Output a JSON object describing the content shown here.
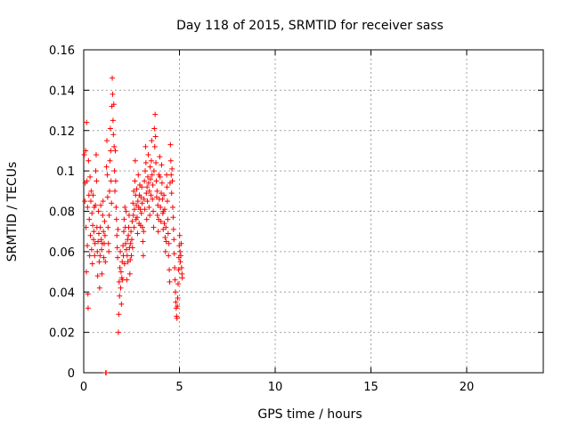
{
  "chart_data": {
    "type": "scatter",
    "title": "Day 118 of 2015, SRMTID for receiver sass",
    "xlabel": "GPS time / hours",
    "ylabel": "SRMTID / TECUs",
    "xlim": [
      0,
      24
    ],
    "ylim": [
      0,
      0.16
    ],
    "xticks": [
      0,
      5,
      10,
      15,
      20
    ],
    "xtick_labels": [
      "0",
      "5",
      "10",
      "15",
      "20"
    ],
    "yticks": [
      0,
      0.02,
      0.04,
      0.06,
      0.08,
      0.1,
      0.12,
      0.14,
      0.16
    ],
    "ytick_labels": [
      "0",
      "0.02",
      "0.04",
      "0.06",
      "0.08",
      "0.1",
      "0.12",
      "0.14",
      "0.16"
    ],
    "grid": true,
    "marker": "plus",
    "color": "#ff0000",
    "series": [
      {
        "name": "SRMTID",
        "points": [
          [
            0.03,
            0.108
          ],
          [
            0.06,
            0.085
          ],
          [
            0.08,
            0.094
          ],
          [
            0.1,
            0.11
          ],
          [
            0.12,
            0.072
          ],
          [
            0.14,
            0.05
          ],
          [
            0.15,
            0.124
          ],
          [
            0.17,
            0.095
          ],
          [
            0.19,
            0.063
          ],
          [
            0.2,
            0.082
          ],
          [
            0.22,
            0.039
          ],
          [
            0.23,
            0.032
          ],
          [
            0.25,
            0.105
          ],
          [
            0.27,
            0.088
          ],
          [
            0.29,
            0.076
          ],
          [
            0.31,
            0.058
          ],
          [
            0.33,
            0.097
          ],
          [
            0.35,
            0.068
          ],
          [
            0.37,
            0.085
          ],
          [
            0.39,
            0.09
          ],
          [
            0.41,
            0.061
          ],
          [
            0.43,
            0.079
          ],
          [
            0.45,
            0.054
          ],
          [
            0.47,
            0.073
          ],
          [
            0.49,
            0.088
          ],
          [
            0.51,
            0.066
          ],
          [
            0.53,
            0.07
          ],
          [
            0.55,
            0.082
          ],
          [
            0.57,
            0.058
          ],
          [
            0.59,
            0.064
          ],
          [
            0.61,
            0.083
          ],
          [
            0.63,
            0.1
          ],
          [
            0.65,
            0.108
          ],
          [
            0.67,
            0.095
          ],
          [
            0.69,
            0.072
          ],
          [
            0.71,
            0.06
          ],
          [
            0.73,
            0.048
          ],
          [
            0.75,
            0.065
          ],
          [
            0.77,
            0.08
          ],
          [
            0.79,
            0.069
          ],
          [
            0.81,
            0.055
          ],
          [
            0.83,
            0.042
          ],
          [
            0.85,
            0.058
          ],
          [
            0.87,
            0.072
          ],
          [
            0.89,
            0.083
          ],
          [
            0.91,
            0.066
          ],
          [
            0.93,
            0.061
          ],
          [
            0.95,
            0.049
          ],
          [
            0.97,
            0.064
          ],
          [
            0.99,
            0.078
          ],
          [
            1.01,
            0.085
          ],
          [
            1.03,
            0.07
          ],
          [
            1.05,
            0.057
          ],
          [
            1.07,
            0.064
          ],
          [
            1.09,
            0.075
          ],
          [
            1.11,
            0.068
          ],
          [
            1.13,
            0.055
          ],
          [
            1.15,
            0.0
          ],
          [
            1.17,
            0.0
          ],
          [
            1.19,
            0.102
          ],
          [
            1.21,
            0.115
          ],
          [
            1.23,
            0.098
          ],
          [
            1.25,
            0.087
          ],
          [
            1.27,
            0.072
          ],
          [
            1.29,
            0.064
          ],
          [
            1.31,
            0.06
          ],
          [
            1.33,
            0.078
          ],
          [
            1.35,
            0.09
          ],
          [
            1.37,
            0.105
          ],
          [
            1.39,
            0.121
          ],
          [
            1.41,
            0.11
          ],
          [
            1.43,
            0.095
          ],
          [
            1.45,
            0.084
          ],
          [
            1.47,
            0.132
          ],
          [
            1.49,
            0.146
          ],
          [
            1.51,
            0.138
          ],
          [
            1.53,
            0.125
          ],
          [
            1.55,
            0.118
          ],
          [
            1.57,
            0.133
          ],
          [
            1.59,
            0.112
          ],
          [
            1.61,
            0.1
          ],
          [
            1.63,
            0.09
          ],
          [
            1.65,
            0.11
          ],
          [
            1.67,
            0.095
          ],
          [
            1.69,
            0.082
          ],
          [
            1.71,
            0.076
          ],
          [
            1.73,
            0.068
          ],
          [
            1.75,
            0.062
          ],
          [
            1.77,
            0.057
          ],
          [
            1.79,
            0.071
          ],
          [
            1.81,
            0.02
          ],
          [
            1.83,
            0.029
          ],
          [
            1.85,
            0.045
          ],
          [
            1.87,
            0.038
          ],
          [
            1.89,
            0.052
          ],
          [
            1.91,
            0.06
          ],
          [
            1.93,
            0.042
          ],
          [
            1.95,
            0.05
          ],
          [
            1.97,
            0.034
          ],
          [
            1.99,
            0.047
          ],
          [
            2.01,
            0.055
          ],
          [
            2.03,
            0.046
          ],
          [
            2.05,
            0.063
          ],
          [
            2.07,
            0.058
          ],
          [
            2.09,
            0.07
          ],
          [
            2.11,
            0.076
          ],
          [
            2.13,
            0.054
          ],
          [
            2.15,
            0.082
          ],
          [
            2.17,
            0.072
          ],
          [
            2.19,
            0.064
          ],
          [
            2.21,
            0.08
          ],
          [
            2.23,
            0.061
          ],
          [
            2.25,
            0.046
          ],
          [
            2.27,
            0.058
          ],
          [
            2.29,
            0.066
          ],
          [
            2.31,
            0.055
          ],
          [
            2.33,
            0.068
          ],
          [
            2.35,
            0.072
          ],
          [
            2.37,
            0.078
          ],
          [
            2.39,
            0.062
          ],
          [
            2.41,
            0.049
          ],
          [
            2.43,
            0.056
          ],
          [
            2.45,
            0.064
          ],
          [
            2.47,
            0.07
          ],
          [
            2.49,
            0.058
          ],
          [
            2.51,
            0.066
          ],
          [
            2.53,
            0.075
          ],
          [
            2.55,
            0.062
          ],
          [
            2.57,
            0.084
          ],
          [
            2.59,
            0.078
          ],
          [
            2.61,
            0.09
          ],
          [
            2.63,
            0.072
          ],
          [
            2.65,
            0.081
          ],
          [
            2.67,
            0.095
          ],
          [
            2.69,
            0.105
          ],
          [
            2.71,
            0.088
          ],
          [
            2.73,
            0.076
          ],
          [
            2.75,
            0.083
          ],
          [
            2.77,
            0.091
          ],
          [
            2.79,
            0.077
          ],
          [
            2.81,
            0.069
          ],
          [
            2.83,
            0.085
          ],
          [
            2.85,
            0.098
          ],
          [
            2.87,
            0.082
          ],
          [
            2.89,
            0.074
          ],
          [
            2.91,
            0.088
          ],
          [
            2.93,
            0.093
          ],
          [
            2.95,
            0.081
          ],
          [
            2.97,
            0.073
          ],
          [
            2.99,
            0.087
          ],
          [
            3.01,
            0.079
          ],
          [
            3.03,
            0.092
          ],
          [
            3.05,
            0.084
          ],
          [
            3.07,
            0.072
          ],
          [
            3.09,
            0.065
          ],
          [
            3.11,
            0.058
          ],
          [
            3.13,
            0.07
          ],
          [
            3.15,
            0.086
          ],
          [
            3.17,
            0.095
          ],
          [
            3.19,
            0.081
          ],
          [
            3.21,
            0.1
          ],
          [
            3.23,
            0.112
          ],
          [
            3.25,
            0.104
          ],
          [
            3.27,
            0.089
          ],
          [
            3.29,
            0.076
          ],
          [
            3.31,
            0.092
          ],
          [
            3.33,
            0.085
          ],
          [
            3.35,
            0.097
          ],
          [
            3.37,
            0.108
          ],
          [
            3.39,
            0.094
          ],
          [
            3.41,
            0.082
          ],
          [
            3.43,
            0.09
          ],
          [
            3.45,
            0.078
          ],
          [
            3.47,
            0.102
          ],
          [
            3.49,
            0.096
          ],
          [
            3.51,
            0.088
          ],
          [
            3.53,
            0.105
          ],
          [
            3.55,
            0.115
          ],
          [
            3.57,
            0.098
          ],
          [
            3.59,
            0.086
          ],
          [
            3.61,
            0.093
          ],
          [
            3.63,
            0.08
          ],
          [
            3.65,
            0.072
          ],
          [
            3.67,
            0.1
          ],
          [
            3.69,
            0.121
          ],
          [
            3.71,
            0.112
          ],
          [
            3.73,
            0.128
          ],
          [
            3.75,
            0.117
          ],
          [
            3.77,
            0.104
          ],
          [
            3.79,
            0.095
          ],
          [
            3.81,
            0.087
          ],
          [
            3.83,
            0.09
          ],
          [
            3.85,
            0.078
          ],
          [
            3.87,
            0.083
          ],
          [
            3.89,
            0.07
          ],
          [
            3.91,
            0.076
          ],
          [
            3.93,
            0.098
          ],
          [
            3.95,
            0.086
          ],
          [
            3.97,
            0.107
          ],
          [
            3.99,
            0.097
          ],
          [
            4.01,
            0.082
          ],
          [
            4.03,
            0.075
          ],
          [
            4.05,
            0.089
          ],
          [
            4.07,
            0.103
          ],
          [
            4.09,
            0.094
          ],
          [
            4.11,
            0.086
          ],
          [
            4.13,
            0.079
          ],
          [
            4.15,
            0.071
          ],
          [
            4.17,
            0.08
          ],
          [
            4.19,
            0.088
          ],
          [
            4.21,
            0.074
          ],
          [
            4.23,
            0.081
          ],
          [
            4.25,
            0.067
          ],
          [
            4.27,
            0.06
          ],
          [
            4.29,
            0.072
          ],
          [
            4.31,
            0.065
          ],
          [
            4.33,
            0.098
          ],
          [
            4.35,
            0.092
          ],
          [
            4.37,
            0.085
          ],
          [
            4.39,
            0.076
          ],
          [
            4.41,
            0.069
          ],
          [
            4.43,
            0.058
          ],
          [
            4.45,
            0.064
          ],
          [
            4.47,
            0.051
          ],
          [
            4.49,
            0.045
          ],
          [
            4.51,
            0.094
          ],
          [
            4.53,
            0.113
          ],
          [
            4.55,
            0.105
          ],
          [
            4.57,
            0.098
          ],
          [
            4.59,
            0.089
          ],
          [
            4.61,
            0.101
          ],
          [
            4.63,
            0.095
          ],
          [
            4.65,
            0.082
          ],
          [
            4.67,
            0.077
          ],
          [
            4.69,
            0.071
          ],
          [
            4.71,
            0.066
          ],
          [
            4.73,
            0.059
          ],
          [
            4.75,
            0.052
          ],
          [
            4.77,
            0.046
          ],
          [
            4.79,
            0.04
          ],
          [
            4.81,
            0.035
          ],
          [
            4.83,
            0.032
          ],
          [
            4.85,
            0.028
          ],
          [
            4.87,
            0.027
          ],
          [
            4.89,
            0.033
          ],
          [
            4.91,
            0.037
          ],
          [
            4.93,
            0.044
          ],
          [
            4.95,
            0.051
          ],
          [
            4.97,
            0.057
          ],
          [
            4.99,
            0.063
          ],
          [
            5.01,
            0.068
          ],
          [
            5.03,
            0.06
          ],
          [
            5.05,
            0.055
          ],
          [
            5.07,
            0.058
          ],
          [
            5.09,
            0.064
          ],
          [
            5.11,
            0.052
          ],
          [
            5.13,
            0.049
          ],
          [
            5.15,
            0.047
          ]
        ]
      }
    ]
  }
}
